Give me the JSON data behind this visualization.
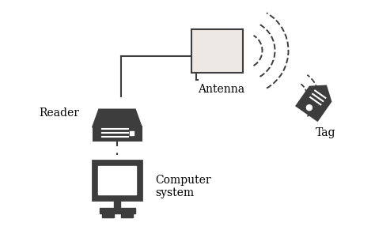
{
  "bg_color": "#ffffff",
  "icon_color": "#3d3d3d",
  "icon_fill": "#3d3d3d",
  "light_fill": "#f0ece8",
  "line_color": "#3d3d3d",
  "antenna_fill": "#ede8e3",
  "reader_label": "Reader",
  "antenna_label": "Antenna",
  "computer_label": "Computer\nsystem",
  "tag_label": "Tag",
  "label_fontsize": 10,
  "figsize": [
    4.74,
    2.96
  ],
  "dpi": 100
}
